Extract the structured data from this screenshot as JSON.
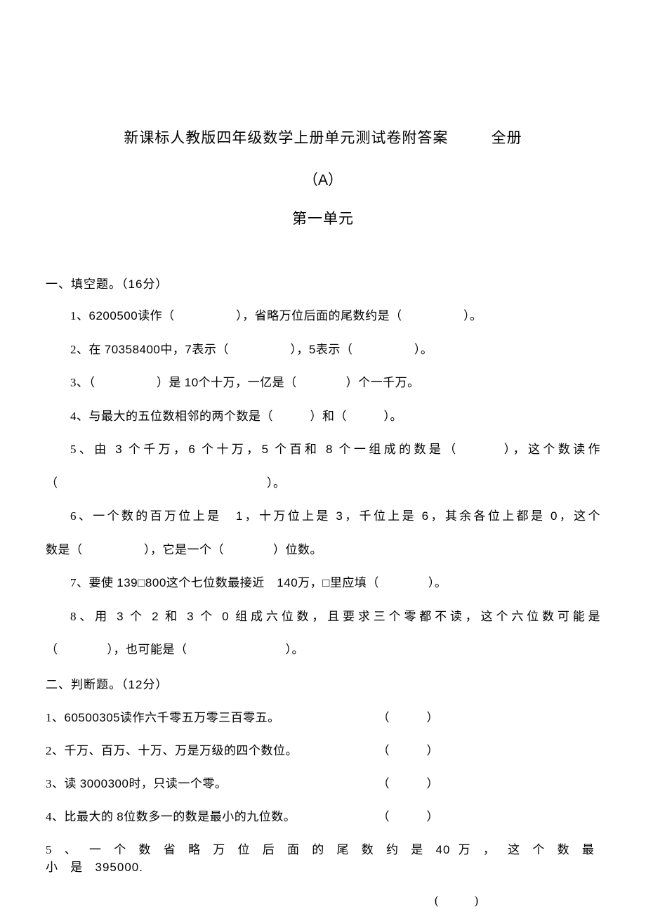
{
  "colors": {
    "text": "#000000",
    "background": "#ffffff"
  },
  "title": {
    "main": "新课标人教版四年级数学上册单元测试卷附答案",
    "right": "全册",
    "paren_open": "（",
    "letter": "A",
    "paren_close": "）",
    "unit": "第一单元"
  },
  "section1": {
    "head_prefix": "一、填空题。（",
    "head_num": "16",
    "head_suffix": "分）",
    "q1": {
      "p1": "1、",
      "n1": "6200500",
      "p2": "读作（　　　　　），省略万位后面的尾数约是（　　　　　）。"
    },
    "q2": {
      "p1": "2、在 ",
      "n1": "70358400",
      "p2": "中，",
      "n2": "7",
      "p3": "表示（　　　　　），",
      "n3": "5",
      "p4": "表示（　　　　　）。"
    },
    "q3": {
      "p1": "3、（　　　　　）是 ",
      "n1": "10",
      "p2": "个十万，一亿是（　　　　）个一千万。"
    },
    "q4": "4、与最大的五位数相邻的两个数是（　　　）和（　　　）。",
    "q5": {
      "p1": "5、由 ",
      "n1": "3",
      "p2": " 个千万，",
      "n2": "6",
      "p3": " 个十万，",
      "n3": "5",
      "p4": " 个百和 ",
      "n4": "8",
      "p5": " 个一组成的数是（　　　），这个数读作"
    },
    "q5b": "（　　　　　　　　　　　　　　　　　）。",
    "q6": {
      "p1": "6、一个数的百万位上是　",
      "n1": "1",
      "p2": "，十万位上是 ",
      "n2": "3",
      "p3": "，千位上是 ",
      "n3": "6",
      "p4": "，其余各位上都是 ",
      "n4": "0",
      "p5": "，这个"
    },
    "q6b": "数是（　　　　　），它是一个（　　　　）位数。",
    "q7": {
      "p1": "7、要使 ",
      "n1": "139",
      "p2": "□",
      "n2": "800",
      "p3": "这个七位数最接近　",
      "n3": "140",
      "p4": "万，□里应填（　　　　）。"
    },
    "q8": {
      "p1": "8、用 ",
      "n1": "3",
      "p2": " 个 ",
      "n2": "2",
      "p3": " 和 ",
      "n3": "3",
      "p4": " 个 ",
      "n4": "0",
      "p5": " 组成六位数，且要求三个零都不读，这个六位数可能是"
    },
    "q8b": "（　　　　），也可能是（　　　　　　　　）。"
  },
  "section2": {
    "head_prefix": "二、判断题。（",
    "head_num": "12",
    "head_suffix": "分）",
    "q1": {
      "p1": "1、",
      "n1": "60500305",
      "p2": "读作六千零五万零三百零五。"
    },
    "q2": "2、千万、百万、十万、万是万级的四个数位。",
    "q3": {
      "p1": "3、读 ",
      "n1": "3000300",
      "p2": "时，只读一个零。"
    },
    "q4": {
      "p1": "4、比最大的 ",
      "n1": "8",
      "p2": "位数多一的数是最小的九位数。"
    },
    "q5": {
      "p1": "5 、 一 个 数 省 略 万 位 后 面 的 尾 数 约 是 ",
      "n1": "40",
      "p2": " 万 ， 这 个 数 最 小 是 ",
      "n2": "395000."
    },
    "paren": "（　　　）",
    "paren5": "(　　　)"
  }
}
